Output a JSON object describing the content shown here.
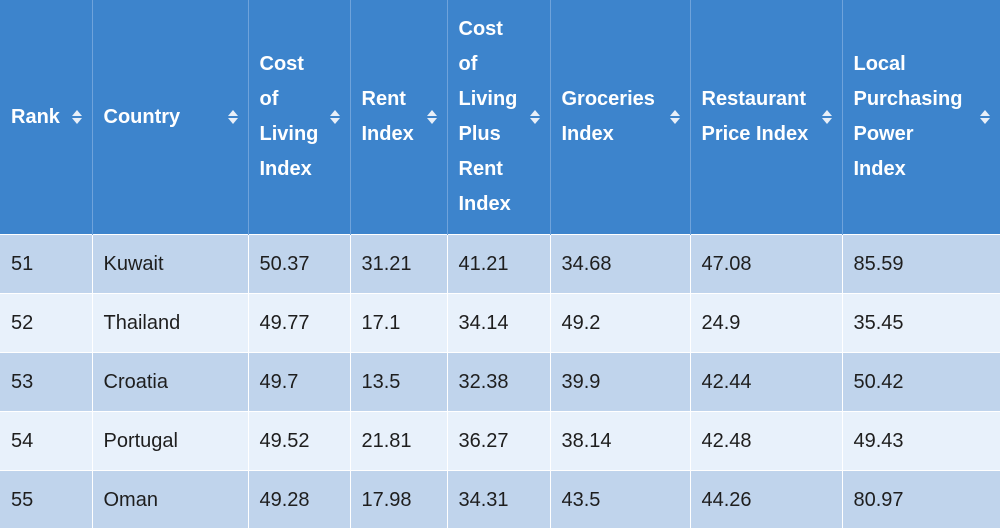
{
  "table": {
    "headers": [
      {
        "label": "Rank",
        "name": "rank"
      },
      {
        "label": "Country",
        "name": "country"
      },
      {
        "label": "Cost of Living Index",
        "name": "cost-of-living-index"
      },
      {
        "label": "Rent Index",
        "name": "rent-index"
      },
      {
        "label": "Cost of Living Plus Rent Index",
        "name": "cost-of-living-plus-rent-index"
      },
      {
        "label": "Groceries Index",
        "name": "groceries-index"
      },
      {
        "label": "Restaurant Price Index",
        "name": "restaurant-price-index"
      },
      {
        "label": "Local Purchasing Power Index",
        "name": "local-purchasing-power-index"
      }
    ],
    "rows": [
      [
        "51",
        "Kuwait",
        "50.37",
        "31.21",
        "41.21",
        "34.68",
        "47.08",
        "85.59"
      ],
      [
        "52",
        "Thailand",
        "49.77",
        "17.1",
        "34.14",
        "49.2",
        "24.9",
        "35.45"
      ],
      [
        "53",
        "Croatia",
        "49.7",
        "13.5",
        "32.38",
        "39.9",
        "42.44",
        "50.42"
      ],
      [
        "54",
        "Portugal",
        "49.52",
        "21.81",
        "36.27",
        "38.14",
        "42.48",
        "49.43"
      ],
      [
        "55",
        "Oman",
        "49.28",
        "17.98",
        "34.31",
        "43.5",
        "44.26",
        "80.97"
      ]
    ]
  },
  "icons": {
    "sort": "sort-arrows-icon"
  },
  "colors": {
    "header_bg": "#3d84cc",
    "row_odd": "#c0d4ec",
    "row_even": "#e8f1fb"
  }
}
